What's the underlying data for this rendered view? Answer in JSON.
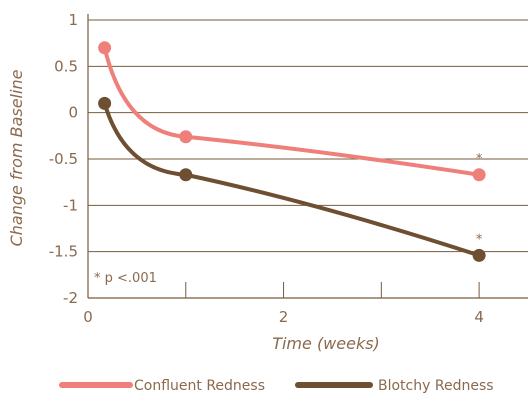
{
  "chart_data": {
    "type": "line",
    "title": "",
    "xlabel": "Time (weeks)",
    "ylabel": "Change from Baseline",
    "xlim": [
      0,
      4.5
    ],
    "ylim": [
      -2,
      1
    ],
    "x_ticks": [
      0,
      2,
      4
    ],
    "x_tick_labels": [
      "0",
      "2",
      "4"
    ],
    "y_ticks": [
      1,
      0.5,
      0,
      -0.5,
      -1,
      -1.5,
      -2
    ],
    "y_tick_labels": [
      "1",
      "0.5",
      "0",
      "-0.5",
      "-1",
      "-1.5",
      "-2"
    ],
    "grid": "horizontal",
    "legend_position": "bottom",
    "annotation": "* p <.001",
    "significance_marker": "*",
    "series": [
      {
        "name": "Confluent Redness",
        "color": "#ef7f7a",
        "x": [
          0.17,
          1,
          4
        ],
        "y": [
          0.7,
          -0.26,
          -0.67
        ],
        "significant_at_end": true
      },
      {
        "name": "Blotchy Redness",
        "color": "#6e4f32",
        "x": [
          0.17,
          1,
          4
        ],
        "y": [
          0.1,
          -0.67,
          -1.54
        ],
        "significant_at_end": true
      }
    ]
  },
  "colors": {
    "axis": "#7a5a3e",
    "text": "#8a6a4e",
    "grid": "#7a5a3e"
  }
}
